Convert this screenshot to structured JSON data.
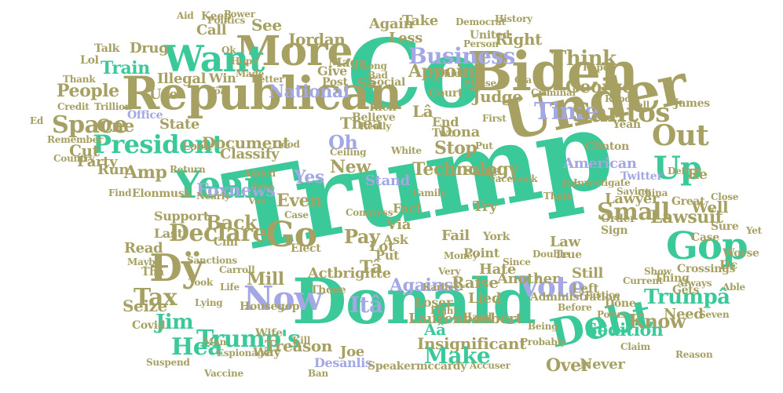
{
  "palette": {
    "green": "#3cc99a",
    "olive": "#a6a062",
    "lavender": "#a3a7e3",
    "background": "#ffffff"
  },
  "words": [
    {
      "text": "Trump",
      "color": "green"
    },
    {
      "text": "Co",
      "color": "green"
    },
    {
      "text": "Donald",
      "color": "green"
    },
    {
      "text": "Under",
      "color": "olive"
    },
    {
      "text": "Biden",
      "color": "olive"
    },
    {
      "text": "Republican",
      "color": "olive"
    },
    {
      "text": "More",
      "color": "olive"
    },
    {
      "text": "Want",
      "color": "green"
    },
    {
      "text": "Debt",
      "color": "green"
    },
    {
      "text": "Gop",
      "color": "green"
    },
    {
      "text": "Year",
      "color": "green"
    },
    {
      "text": "President",
      "color": "green"
    },
    {
      "text": "Now",
      "color": "lavender"
    },
    {
      "text": "Go",
      "color": "olive"
    },
    {
      "text": "Đÿ",
      "color": "olive"
    },
    {
      "text": "Trump's",
      "color": "green"
    },
    {
      "text": "Vote",
      "color": "lavender"
    },
    {
      "text": "Out",
      "color": "olive"
    },
    {
      "text": "Up",
      "color": "green"
    },
    {
      "text": "Time",
      "color": "lavender"
    },
    {
      "text": "Santos",
      "color": "olive"
    },
    {
      "text": "Declare",
      "color": "olive"
    },
    {
      "text": "Small",
      "color": "olive"
    },
    {
      "text": "Space",
      "color": "olive"
    },
    {
      "text": "People",
      "color": "olive"
    },
    {
      "text": "Business",
      "color": "lavender"
    },
    {
      "text": "National",
      "color": "lavender"
    },
    {
      "text": "Train",
      "color": "green"
    },
    {
      "text": "Illegal",
      "color": "olive"
    },
    {
      "text": "Tax",
      "color": "olive"
    },
    {
      "text": "Jim",
      "color": "green"
    },
    {
      "text": "Appoint",
      "color": "olive"
    },
    {
      "text": "Think",
      "color": "olive"
    },
    {
      "text": "Oh",
      "color": "lavender"
    },
    {
      "text": "George",
      "color": "olive"
    },
    {
      "text": "Technology",
      "color": "olive"
    },
    {
      "text": "Lawsuit",
      "color": "olive"
    },
    {
      "text": "Trumpâ",
      "color": "green"
    },
    {
      "text": "Know",
      "color": "olive"
    },
    {
      "text": "Against",
      "color": "lavender"
    },
    {
      "text": "Pay",
      "color": "olive"
    },
    {
      "text": "Back",
      "color": "olive"
    },
    {
      "text": "Even",
      "color": "olive"
    },
    {
      "text": "Yes",
      "color": "lavender"
    },
    {
      "text": "New",
      "color": "olive"
    },
    {
      "text": "Jordan",
      "color": "olive"
    },
    {
      "text": "See",
      "color": "olive"
    },
    {
      "text": "State",
      "color": "olive"
    },
    {
      "text": "One",
      "color": "olive"
    },
    {
      "text": "Amp",
      "color": "olive"
    },
    {
      "text": "Run",
      "color": "olive"
    },
    {
      "text": "Treason",
      "color": "olive"
    },
    {
      "text": "Seize",
      "color": "olive"
    },
    {
      "text": "Mill",
      "color": "olive"
    },
    {
      "text": "Itâ",
      "color": "lavender"
    },
    {
      "text": "Tâ",
      "color": "olive"
    },
    {
      "text": "Thea",
      "color": "olive"
    },
    {
      "text": "Lâ",
      "color": "olive"
    },
    {
      "text": "Heâ",
      "color": "green"
    },
    {
      "text": "Lot",
      "color": "olive"
    },
    {
      "text": "Put",
      "color": "olive"
    },
    {
      "text": "Fail",
      "color": "olive"
    },
    {
      "text": "Try",
      "color": "olive"
    },
    {
      "text": "Stop",
      "color": "olive"
    },
    {
      "text": "Dona",
      "color": "olive"
    },
    {
      "text": "Judge",
      "color": "olive"
    },
    {
      "text": "Insignificant",
      "color": "olive"
    },
    {
      "text": "Make",
      "color": "green"
    },
    {
      "text": "Over",
      "color": "olive"
    },
    {
      "text": "Desanlis",
      "color": "lavender"
    },
    {
      "text": "Sedition",
      "color": "green"
    },
    {
      "text": "Never",
      "color": "olive"
    },
    {
      "text": "Aâ",
      "color": "green"
    },
    {
      "text": "Raise",
      "color": "olive"
    },
    {
      "text": "Another",
      "color": "olive"
    },
    {
      "text": "Laurenboebert",
      "color": "olive"
    },
    {
      "text": "Actbrigitte",
      "color": "olive"
    },
    {
      "text": "Foxnews",
      "color": "lavender"
    },
    {
      "text": "Document",
      "color": "olive"
    },
    {
      "text": "Office",
      "color": "lavender"
    },
    {
      "text": "Classify",
      "color": "olive"
    },
    {
      "text": "Still",
      "color": "olive"
    },
    {
      "text": "Left",
      "color": "olive"
    },
    {
      "text": "Lawyer",
      "color": "olive"
    },
    {
      "text": "Well",
      "color": "olive"
    },
    {
      "text": "American",
      "color": "lavender"
    },
    {
      "text": "Re",
      "color": "olive"
    },
    {
      "text": "Right",
      "color": "olive"
    },
    {
      "text": "Again",
      "color": "olive"
    },
    {
      "text": "Drug",
      "color": "olive"
    },
    {
      "text": "Call",
      "color": "olive"
    },
    {
      "text": "Use",
      "color": "olive"
    },
    {
      "text": "Win",
      "color": "olive"
    },
    {
      "text": "Give",
      "color": "olive"
    },
    {
      "text": "Maga",
      "color": "olive"
    },
    {
      "text": "Less",
      "color": "olive"
    },
    {
      "text": "Take",
      "color": "olive"
    },
    {
      "text": "Court",
      "color": "olive"
    },
    {
      "text": "Same",
      "color": "olive"
    },
    {
      "text": "End",
      "color": "olive"
    },
    {
      "text": "Two",
      "color": "olive"
    },
    {
      "text": "Believe",
      "color": "olive"
    },
    {
      "text": "Cut",
      "color": "olive"
    },
    {
      "text": "Party",
      "color": "olive"
    },
    {
      "text": "Read",
      "color": "olive"
    },
    {
      "text": "Support",
      "color": "olive"
    },
    {
      "text": "Last",
      "color": "olive"
    },
    {
      "text": "Stand",
      "color": "lavender"
    },
    {
      "text": "Fact",
      "color": "olive"
    },
    {
      "text": "Law",
      "color": "olive"
    },
    {
      "text": "True",
      "color": "olive"
    },
    {
      "text": "Point",
      "color": "olive"
    },
    {
      "text": "Hate",
      "color": "olive"
    },
    {
      "text": "Ask",
      "color": "olive"
    },
    {
      "text": "Via",
      "color": "olive"
    },
    {
      "text": "Lied",
      "color": "olive"
    },
    {
      "text": "Loser",
      "color": "olive"
    },
    {
      "text": "Wife",
      "color": "olive"
    },
    {
      "text": "Way",
      "color": "olive"
    },
    {
      "text": "Joe",
      "color": "olive"
    },
    {
      "text": "Need",
      "color": "olive"
    },
    {
      "text": "Gets",
      "color": "olive"
    },
    {
      "text": "Dc",
      "color": "olive"
    },
    {
      "text": "Twitter",
      "color": "lavender"
    },
    {
      "text": "Thâ",
      "color": "olive"
    },
    {
      "text": "Speakermccardy",
      "color": "olive"
    },
    {
      "text": "Covid",
      "color": "olive"
    },
    {
      "text": "Elonmusk",
      "color": "olive"
    },
    {
      "text": "Clinton",
      "color": "olive"
    },
    {
      "text": "James",
      "color": "olive"
    },
    {
      "text": "Yeah",
      "color": "olive"
    },
    {
      "text": "Done",
      "color": "olive"
    },
    {
      "text": "Crossings",
      "color": "olive"
    },
    {
      "text": "Cnn",
      "color": "olive"
    },
    {
      "text": "Housegop",
      "color": "olive"
    },
    {
      "text": "Elect",
      "color": "olive"
    },
    {
      "text": "Administration",
      "color": "olive"
    },
    {
      "text": "Congress",
      "color": "olive"
    },
    {
      "text": "York",
      "color": "olive"
    },
    {
      "text": "Hard",
      "color": "olive"
    },
    {
      "text": "Investigate",
      "color": "olive"
    },
    {
      "text": "Facebook",
      "color": "olive"
    },
    {
      "text": "Sign",
      "color": "olive"
    },
    {
      "text": "Order",
      "color": "olive"
    },
    {
      "text": "Report",
      "color": "olive"
    },
    {
      "text": "Case",
      "color": "olive"
    },
    {
      "text": "Sure",
      "color": "olive"
    },
    {
      "text": "Able",
      "color": "olive"
    },
    {
      "text": "Worse",
      "color": "olive"
    },
    {
      "text": "Always",
      "color": "olive"
    },
    {
      "text": "Seven",
      "color": "olive"
    },
    {
      "text": "Remember",
      "color": "olive"
    },
    {
      "text": "Credit",
      "color": "olive"
    },
    {
      "text": "Trillion",
      "color": "olive"
    },
    {
      "text": "Country",
      "color": "olive"
    },
    {
      "text": "Talk",
      "color": "olive"
    },
    {
      "text": "Keep",
      "color": "olive"
    },
    {
      "text": "Post",
      "color": "olive"
    },
    {
      "text": "Politics",
      "color": "olive"
    },
    {
      "text": "Power",
      "color": "olive"
    },
    {
      "text": "Democrat",
      "color": "olive"
    },
    {
      "text": "History",
      "color": "olive"
    },
    {
      "text": "United",
      "color": "olive"
    },
    {
      "text": "Person",
      "color": "olive"
    },
    {
      "text": "Social",
      "color": "olive"
    },
    {
      "text": "Ceiling",
      "color": "olive"
    },
    {
      "text": "Criminal",
      "color": "olive"
    },
    {
      "text": "Really",
      "color": "olive"
    },
    {
      "text": "Rich",
      "color": "olive"
    },
    {
      "text": "White",
      "color": "olive"
    },
    {
      "text": "Look",
      "color": "olive"
    },
    {
      "text": "Return",
      "color": "olive"
    },
    {
      "text": "Find",
      "color": "olive"
    },
    {
      "text": "Espionage",
      "color": "olive"
    },
    {
      "text": "Vaccine",
      "color": "olive"
    },
    {
      "text": "Suspend",
      "color": "olive"
    },
    {
      "text": "Sanctions",
      "color": "olive"
    },
    {
      "text": "Carroll",
      "color": "olive"
    },
    {
      "text": "Those",
      "color": "olive"
    },
    {
      "text": "Money",
      "color": "olive"
    },
    {
      "text": "Kill",
      "color": "olive"
    },
    {
      "text": "Saying",
      "color": "olive"
    },
    {
      "text": "Current",
      "color": "olive"
    },
    {
      "text": "Claim",
      "color": "olive"
    },
    {
      "text": "Potus",
      "color": "olive"
    },
    {
      "text": "Before",
      "color": "olive"
    },
    {
      "text": "Double",
      "color": "olive"
    },
    {
      "text": "Reason",
      "color": "olive"
    },
    {
      "text": "Justice",
      "color": "olive"
    },
    {
      "text": "Karlieer",
      "color": "olive"
    },
    {
      "text": "Very",
      "color": "olive"
    },
    {
      "text": "Being",
      "color": "olive"
    },
    {
      "text": "Probably",
      "color": "olive"
    },
    {
      "text": "Accuser",
      "color": "olive"
    },
    {
      "text": "Lying",
      "color": "olive"
    },
    {
      "text": "Maybe",
      "color": "olive"
    },
    {
      "text": "Took",
      "color": "olive"
    },
    {
      "text": "Nearly",
      "color": "olive"
    },
    {
      "text": "Thank",
      "color": "olive"
    },
    {
      "text": "Aid",
      "color": "olive"
    },
    {
      "text": "Lol",
      "color": "olive"
    },
    {
      "text": "Sâ",
      "color": "olive"
    },
    {
      "text": "Tôa",
      "color": "olive"
    },
    {
      "text": "Gla",
      "color": "olive"
    },
    {
      "text": "Ok",
      "color": "olive"
    },
    {
      "text": "Made",
      "color": "olive"
    },
    {
      "text": "Hope",
      "color": "olive"
    },
    {
      "text": "Better",
      "color": "olive"
    },
    {
      "text": "Good",
      "color": "olive"
    },
    {
      "text": "Long",
      "color": "olive"
    },
    {
      "text": "Please",
      "color": "olive"
    },
    {
      "text": "Man",
      "color": "olive"
    },
    {
      "text": "Since",
      "color": "olive"
    },
    {
      "text": "Case",
      "color": "olive"
    },
    {
      "text": "Family",
      "color": "olive"
    },
    {
      "text": "Show",
      "color": "olive"
    },
    {
      "text": "Thing",
      "color": "olive"
    },
    {
      "text": "Great",
      "color": "olive"
    },
    {
      "text": "Life",
      "color": "olive"
    },
    {
      "text": "First",
      "color": "olive"
    },
    {
      "text": "Rape",
      "color": "olive"
    },
    {
      "text": "Free",
      "color": "olive"
    },
    {
      "text": "Vax",
      "color": "olive"
    },
    {
      "text": "Added",
      "color": "olive"
    },
    {
      "text": "Ed",
      "color": "olive"
    },
    {
      "text": "Far",
      "color": "olive"
    },
    {
      "text": "Thats",
      "color": "olive"
    },
    {
      "text": "China",
      "color": "olive"
    },
    {
      "text": "Close",
      "color": "olive"
    },
    {
      "text": "Fight",
      "color": "olive"
    },
    {
      "text": "Ban",
      "color": "olive"
    },
    {
      "text": "Bad",
      "color": "olive"
    },
    {
      "text": "Hell",
      "color": "olive"
    },
    {
      "text": "Chief",
      "color": "olive"
    },
    {
      "text": "Put",
      "color": "olive"
    },
    {
      "text": "Deficit",
      "color": "olive"
    },
    {
      "text": "Yet",
      "color": "olive"
    },
    {
      "text": "Doj",
      "color": "olive"
    },
    {
      "text": "Yes",
      "color": "olive"
    },
    {
      "text": "Ru",
      "color": "olive"
    }
  ]
}
